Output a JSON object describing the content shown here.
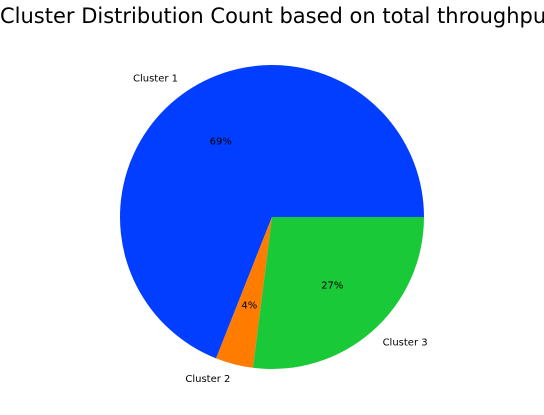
{
  "chart_data": {
    "type": "pie",
    "title": "Cluster Distribution Count based on total throughput",
    "categories": [
      "Cluster 1",
      "Cluster 2",
      "Cluster 3"
    ],
    "values": [
      69,
      4,
      27
    ],
    "percent_labels": [
      "69%",
      "4%",
      "27%"
    ],
    "colors": [
      "#023eff",
      "#ff7c00",
      "#1ac938"
    ],
    "start_angle_deg": 0,
    "direction": "counterclockwise",
    "legend": "none"
  }
}
